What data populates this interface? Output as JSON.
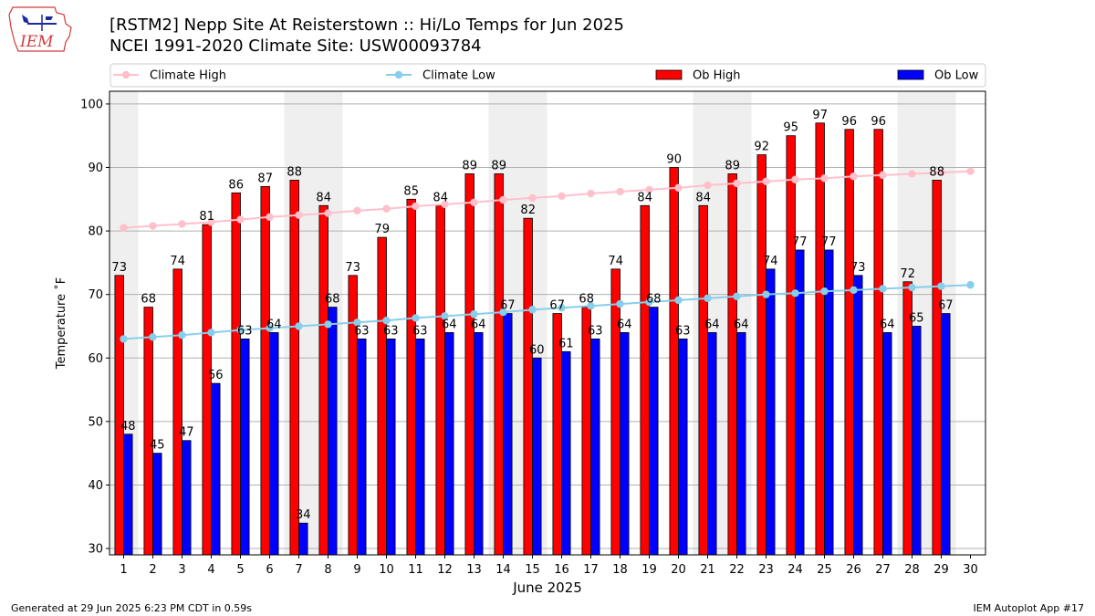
{
  "header": {
    "title_line1": "[RSTM2] Nepp Site At Reisterstown :: Hi/Lo Temps for Jun 2025",
    "title_line2": "NCEI 1991-2020 Climate Site: USW00093784",
    "logo_text": "IEM"
  },
  "footer": {
    "left": "Generated at 29 Jun 2025 6:23 PM CDT in 0.59s",
    "right": "IEM Autoplot App #17"
  },
  "chart_data": {
    "type": "bar",
    "xlabel": "June 2025",
    "ylabel": "Temperature ˚F",
    "ylim": [
      29,
      102
    ],
    "yticks": [
      30,
      40,
      50,
      60,
      70,
      80,
      90,
      100
    ],
    "categories": [
      "1",
      "2",
      "3",
      "4",
      "5",
      "6",
      "7",
      "8",
      "9",
      "10",
      "11",
      "12",
      "13",
      "14",
      "15",
      "16",
      "17",
      "18",
      "19",
      "20",
      "21",
      "22",
      "23",
      "24",
      "25",
      "26",
      "27",
      "28",
      "29",
      "30"
    ],
    "grid": true,
    "legend_position": "top",
    "weekend_shading": [
      1,
      7,
      8,
      14,
      15,
      21,
      22,
      28,
      29
    ],
    "series": [
      {
        "name": "Climate High",
        "kind": "line",
        "color": "#ffc0cb",
        "values": [
          80.5,
          80.8,
          81.1,
          81.4,
          81.8,
          82.2,
          82.5,
          82.8,
          83.2,
          83.5,
          83.9,
          84.2,
          84.5,
          84.9,
          85.2,
          85.5,
          85.9,
          86.2,
          86.5,
          86.8,
          87.2,
          87.5,
          87.8,
          88.1,
          88.3,
          88.6,
          88.8,
          89.0,
          89.2,
          89.4
        ]
      },
      {
        "name": "Climate Low",
        "kind": "line",
        "color": "#87ceeb",
        "values": [
          63.0,
          63.3,
          63.6,
          64.0,
          64.4,
          64.7,
          65.0,
          65.3,
          65.6,
          65.9,
          66.3,
          66.6,
          66.9,
          67.2,
          67.6,
          67.9,
          68.2,
          68.5,
          68.8,
          69.1,
          69.4,
          69.7,
          70.0,
          70.2,
          70.5,
          70.7,
          70.9,
          71.1,
          71.3,
          71.5
        ]
      },
      {
        "name": "Ob High",
        "kind": "bar",
        "color": "#ff0000",
        "values": [
          73,
          68,
          74,
          81,
          86,
          87,
          88,
          84,
          73,
          79,
          85,
          84,
          89,
          89,
          82,
          67,
          68,
          74,
          84,
          90,
          84,
          89,
          92,
          95,
          97,
          96,
          96,
          72,
          88,
          null
        ]
      },
      {
        "name": "Ob Low",
        "kind": "bar",
        "color": "#0000ff",
        "values": [
          48,
          45,
          47,
          56,
          63,
          64,
          34,
          68,
          63,
          63,
          63,
          64,
          64,
          67,
          60,
          61,
          63,
          64,
          68,
          63,
          64,
          64,
          74,
          77,
          77,
          73,
          64,
          65,
          67,
          null
        ]
      }
    ]
  }
}
